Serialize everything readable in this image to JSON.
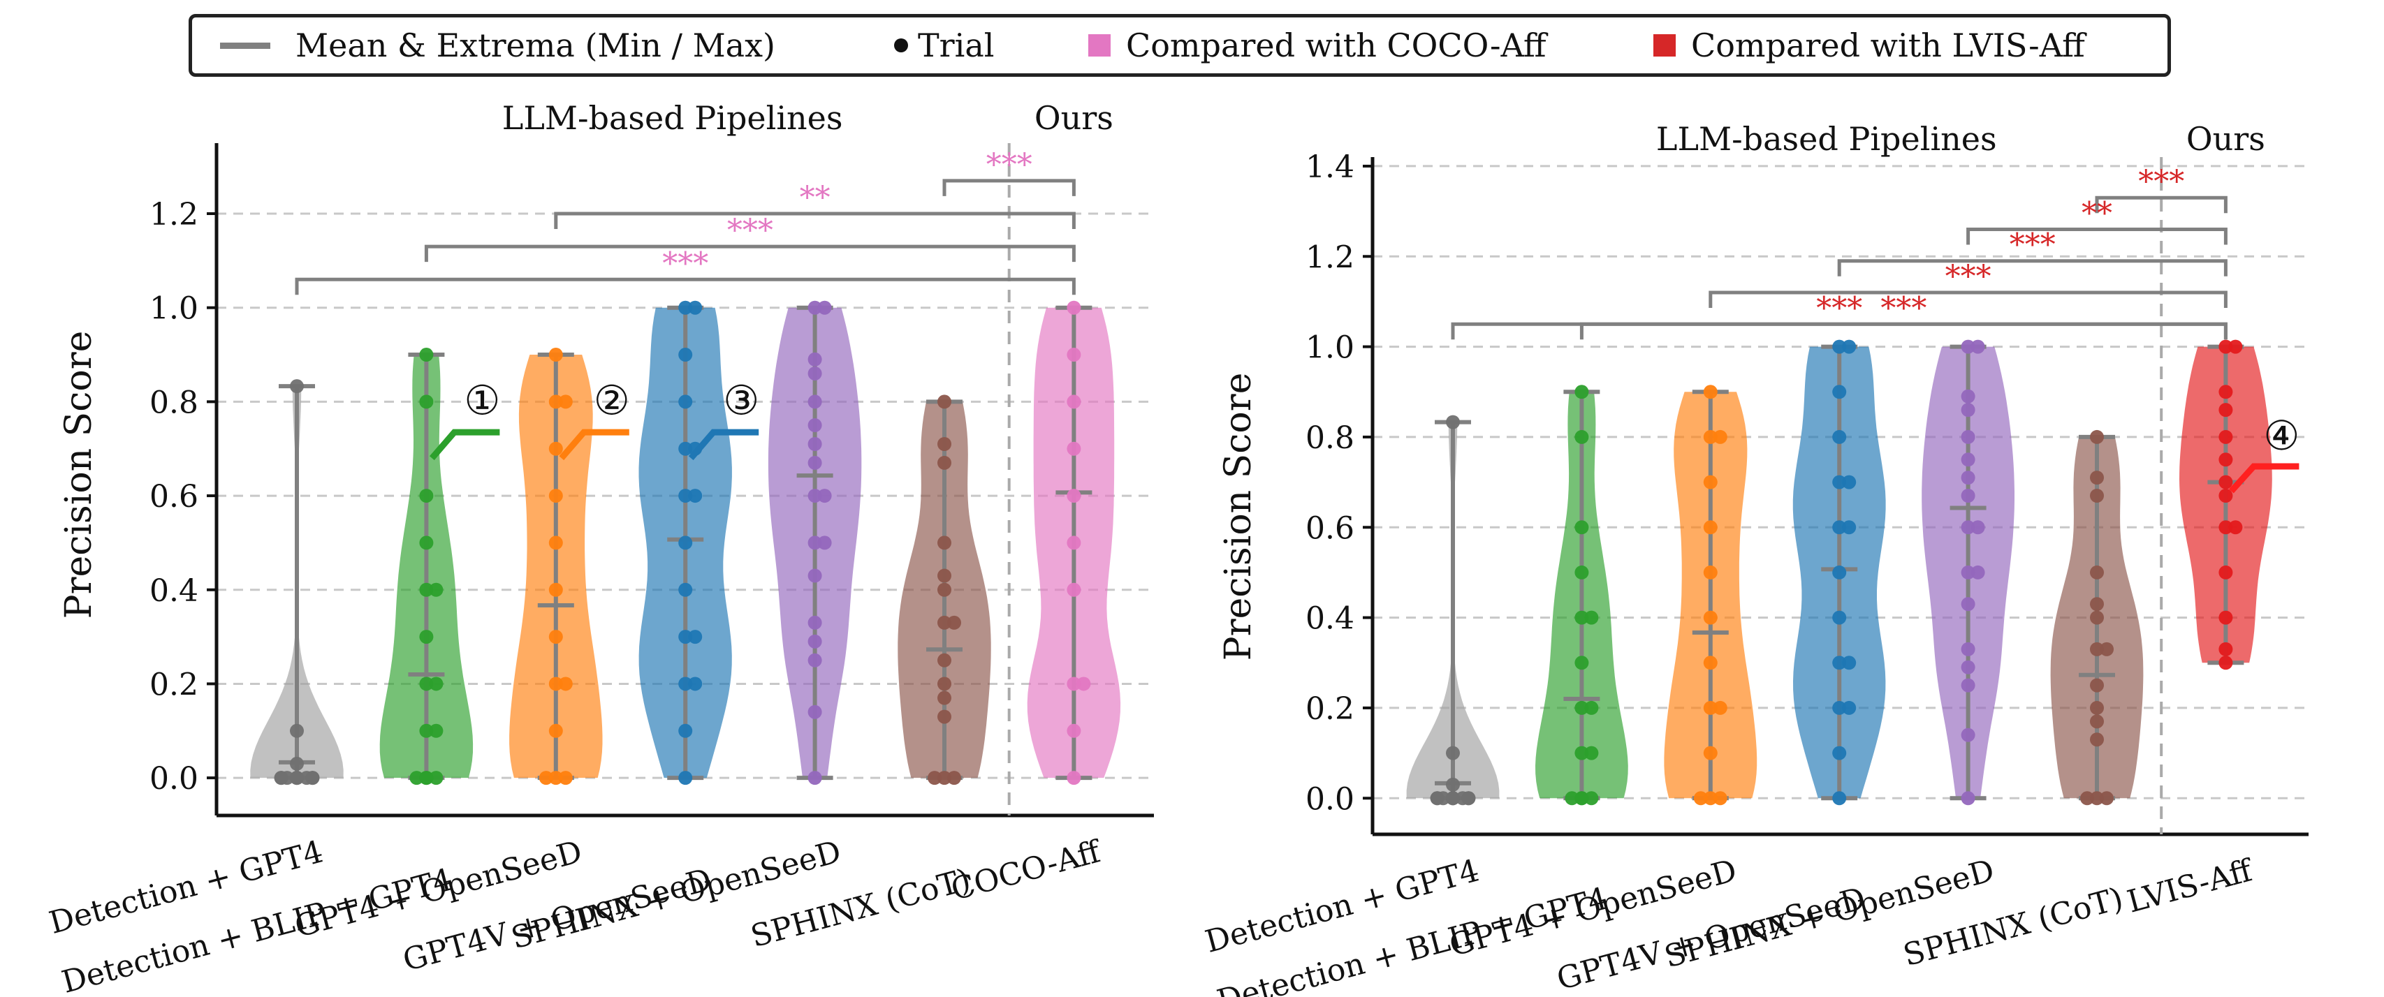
{
  "legend": {
    "mean_label": "Mean & Extrema (Min / Max)",
    "trial_label": "Trial",
    "coco_label": "Compared with COCO-Aff",
    "lvis_label": "Compared with  LVIS-Aff",
    "coco_color": "#e377c2",
    "lvis_color": "#d62728"
  },
  "chart_data": [
    {
      "type": "violin",
      "ylabel": "Precision Score",
      "ylim": [
        -0.08,
        1.35
      ],
      "yticks": [
        0.0,
        0.2,
        0.4,
        0.6,
        0.8,
        1.0,
        1.2
      ],
      "group_label_left": "LLM-based Pipelines",
      "group_label_right": "Ours",
      "sig_color": "#e377c2",
      "categories": [
        "Detection + GPT4",
        "Detection + BLIP + GPT4",
        "GPT4 + OpenSeeD",
        "GPT4V + OpenSeeD",
        "SPHINX + OpenSeeD",
        "SPHINX (CoT)",
        "COCO-Aff"
      ],
      "series": [
        {
          "color": "#a0a0a0",
          "min": 0.0,
          "max": 0.833,
          "mean": 0.033,
          "points": [
            0,
            0,
            0,
            0,
            0,
            0,
            0,
            0,
            0,
            0.03,
            0.1,
            0.833
          ]
        },
        {
          "color": "#2ca02c",
          "min": 0.0,
          "max": 0.9,
          "mean": 0.22,
          "points": [
            0,
            0,
            0,
            0,
            0.1,
            0.1,
            0.2,
            0.2,
            0.3,
            0.4,
            0.4,
            0.5,
            0.6,
            0.8,
            0.9
          ],
          "marker": "①"
        },
        {
          "color": "#ff7f0e",
          "min": 0.0,
          "max": 0.9,
          "mean": 0.367,
          "points": [
            0,
            0,
            0,
            0.1,
            0.2,
            0.2,
            0.3,
            0.4,
            0.5,
            0.6,
            0.7,
            0.8,
            0.8,
            0.9
          ],
          "marker": "②"
        },
        {
          "color": "#1f77b4",
          "min": 0.0,
          "max": 1.0,
          "mean": 0.507,
          "points": [
            0,
            0.1,
            0.2,
            0.2,
            0.3,
            0.3,
            0.4,
            0.5,
            0.6,
            0.6,
            0.7,
            0.7,
            0.8,
            0.9,
            1.0,
            1.0
          ],
          "marker": "③"
        },
        {
          "color": "#9467bd",
          "min": 0.0,
          "max": 1.0,
          "mean": 0.643,
          "points": [
            0,
            0.14,
            0.25,
            0.29,
            0.33,
            0.43,
            0.5,
            0.5,
            0.6,
            0.6,
            0.67,
            0.71,
            0.75,
            0.8,
            0.86,
            0.89,
            1.0,
            1.0
          ]
        },
        {
          "color": "#8c564b",
          "min": 0.0,
          "max": 0.8,
          "mean": 0.273,
          "points": [
            0,
            0,
            0,
            0.13,
            0.17,
            0.2,
            0.25,
            0.33,
            0.33,
            0.4,
            0.43,
            0.5,
            0.67,
            0.71,
            0.8
          ]
        },
        {
          "color": "#e377c2",
          "min": 0.0,
          "max": 1.0,
          "mean": 0.607,
          "points": [
            0,
            0.1,
            0.2,
            0.2,
            0.4,
            0.5,
            0.6,
            0.7,
            0.8,
            0.9,
            1.0
          ]
        }
      ],
      "comparisons": [
        {
          "from": 5,
          "to": 6,
          "label": "***",
          "y": 1.27
        },
        {
          "from": 2,
          "to": 6,
          "label": "**",
          "y": 1.2
        },
        {
          "from": 1,
          "to": 6,
          "label": "***",
          "y": 1.13
        },
        {
          "from": 0,
          "to": 6,
          "label": "***",
          "y": 1.06
        }
      ]
    },
    {
      "type": "violin",
      "ylabel": "Precision Score",
      "ylim": [
        -0.08,
        1.42
      ],
      "yticks": [
        0.0,
        0.2,
        0.4,
        0.6,
        0.8,
        1.0,
        1.2,
        1.4
      ],
      "group_label_left": "LLM-based Pipelines",
      "group_label_right": "Ours",
      "sig_color": "#d62728",
      "categories": [
        "Detection + GPT4",
        "Detection + BLIP + GPT4",
        "GPT4 + OpenSeeD",
        "GPT4V + OpenSeeD",
        "SPHINX + OpenSeeD",
        "SPHINX (CoT)",
        "LVIS-Aff"
      ],
      "series": [
        {
          "color": "#a0a0a0",
          "min": 0.0,
          "max": 0.833,
          "mean": 0.033,
          "points": [
            0,
            0,
            0,
            0,
            0,
            0,
            0,
            0,
            0,
            0.03,
            0.1,
            0.833
          ]
        },
        {
          "color": "#2ca02c",
          "min": 0.0,
          "max": 0.9,
          "mean": 0.22,
          "points": [
            0,
            0,
            0,
            0,
            0.1,
            0.1,
            0.2,
            0.2,
            0.3,
            0.4,
            0.4,
            0.5,
            0.6,
            0.8,
            0.9
          ]
        },
        {
          "color": "#ff7f0e",
          "min": 0.0,
          "max": 0.9,
          "mean": 0.367,
          "points": [
            0,
            0,
            0,
            0.1,
            0.2,
            0.2,
            0.3,
            0.4,
            0.5,
            0.6,
            0.7,
            0.8,
            0.8,
            0.9
          ]
        },
        {
          "color": "#1f77b4",
          "min": 0.0,
          "max": 1.0,
          "mean": 0.507,
          "points": [
            0,
            0.1,
            0.2,
            0.2,
            0.3,
            0.3,
            0.4,
            0.5,
            0.6,
            0.6,
            0.7,
            0.7,
            0.8,
            0.9,
            1.0,
            1.0
          ]
        },
        {
          "color": "#9467bd",
          "min": 0.0,
          "max": 1.0,
          "mean": 0.643,
          "points": [
            0,
            0.14,
            0.25,
            0.29,
            0.33,
            0.43,
            0.5,
            0.5,
            0.6,
            0.6,
            0.67,
            0.71,
            0.75,
            0.8,
            0.86,
            0.89,
            1.0,
            1.0
          ]
        },
        {
          "color": "#8c564b",
          "min": 0.0,
          "max": 0.8,
          "mean": 0.273,
          "points": [
            0,
            0,
            0,
            0.13,
            0.17,
            0.2,
            0.25,
            0.33,
            0.33,
            0.4,
            0.43,
            0.5,
            0.67,
            0.71,
            0.8
          ]
        },
        {
          "color": "#e41a1c",
          "min": 0.3,
          "max": 1.0,
          "mean": 0.7,
          "points": [
            0.3,
            0.33,
            0.4,
            0.5,
            0.6,
            0.6,
            0.67,
            0.7,
            0.75,
            0.8,
            0.86,
            0.9,
            1.0,
            1.0
          ],
          "marker": "④"
        }
      ],
      "comparisons": [
        {
          "from": 5,
          "to": 6,
          "label": "***",
          "y": 1.33
        },
        {
          "from": 4,
          "to": 6,
          "label": "**",
          "y": 1.26
        },
        {
          "from": 3,
          "to": 6,
          "label": "***",
          "y": 1.19
        },
        {
          "from": 2,
          "to": 6,
          "label": "***",
          "y": 1.12
        },
        {
          "from": 1,
          "to": 6,
          "label": "***",
          "y": 1.05
        },
        {
          "from": 0,
          "to": 6,
          "label": "***",
          "y": 1.05
        }
      ]
    }
  ]
}
